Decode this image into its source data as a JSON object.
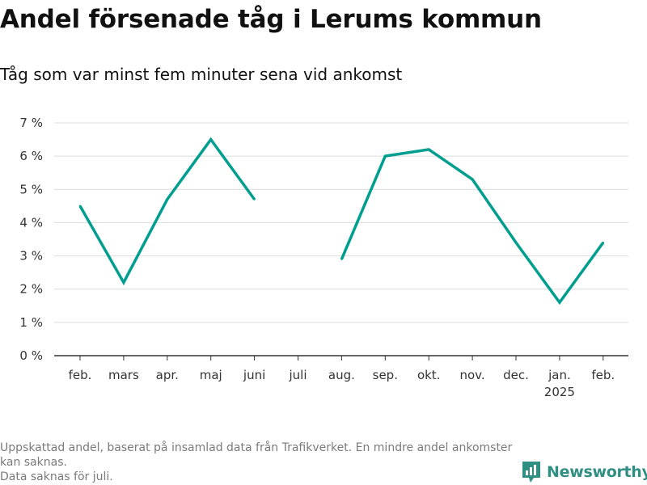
{
  "header": {
    "title": "Andel försenade tåg i Lerums kommun",
    "subtitle": "Tåg som var minst fem minuter sena vid ankomst"
  },
  "chart_data": {
    "type": "line",
    "title": "Andel försenade tåg i Lerums kommun",
    "subtitle": "Tåg som var minst fem minuter sena vid ankomst",
    "xlabel": "",
    "ylabel": "",
    "categories": [
      "feb.",
      "mars",
      "apr.",
      "maj",
      "juni",
      "juli",
      "aug.",
      "sep.",
      "okt.",
      "nov.",
      "dec.",
      "jan.",
      "feb."
    ],
    "category_sublabels": [
      "",
      "",
      "",
      "",
      "",
      "",
      "",
      "",
      "",
      "",
      "",
      "2025",
      ""
    ],
    "series": [
      {
        "name": "Andel försenade tåg",
        "values": [
          4.5,
          2.2,
          4.7,
          6.5,
          4.7,
          null,
          2.9,
          6.0,
          6.2,
          5.3,
          3.4,
          1.6,
          3.4
        ]
      }
    ],
    "ylim": [
      0,
      7
    ],
    "yticks": [
      0,
      1,
      2,
      3,
      4,
      5,
      6,
      7
    ],
    "ytick_labels": [
      "0 %",
      "1 %",
      "2 %",
      "3 %",
      "4 %",
      "5 %",
      "6 %",
      "7 %"
    ],
    "grid": true,
    "line_color": "#009e8f"
  },
  "footer": {
    "notes": [
      "Uppskattad andel, baserat på insamlad data från Trafikverket. En mindre andel ankomster kan saknas.",
      "Data saknas för juli."
    ],
    "brand": "Newsworthy",
    "brand_color": "#2f8f83"
  }
}
